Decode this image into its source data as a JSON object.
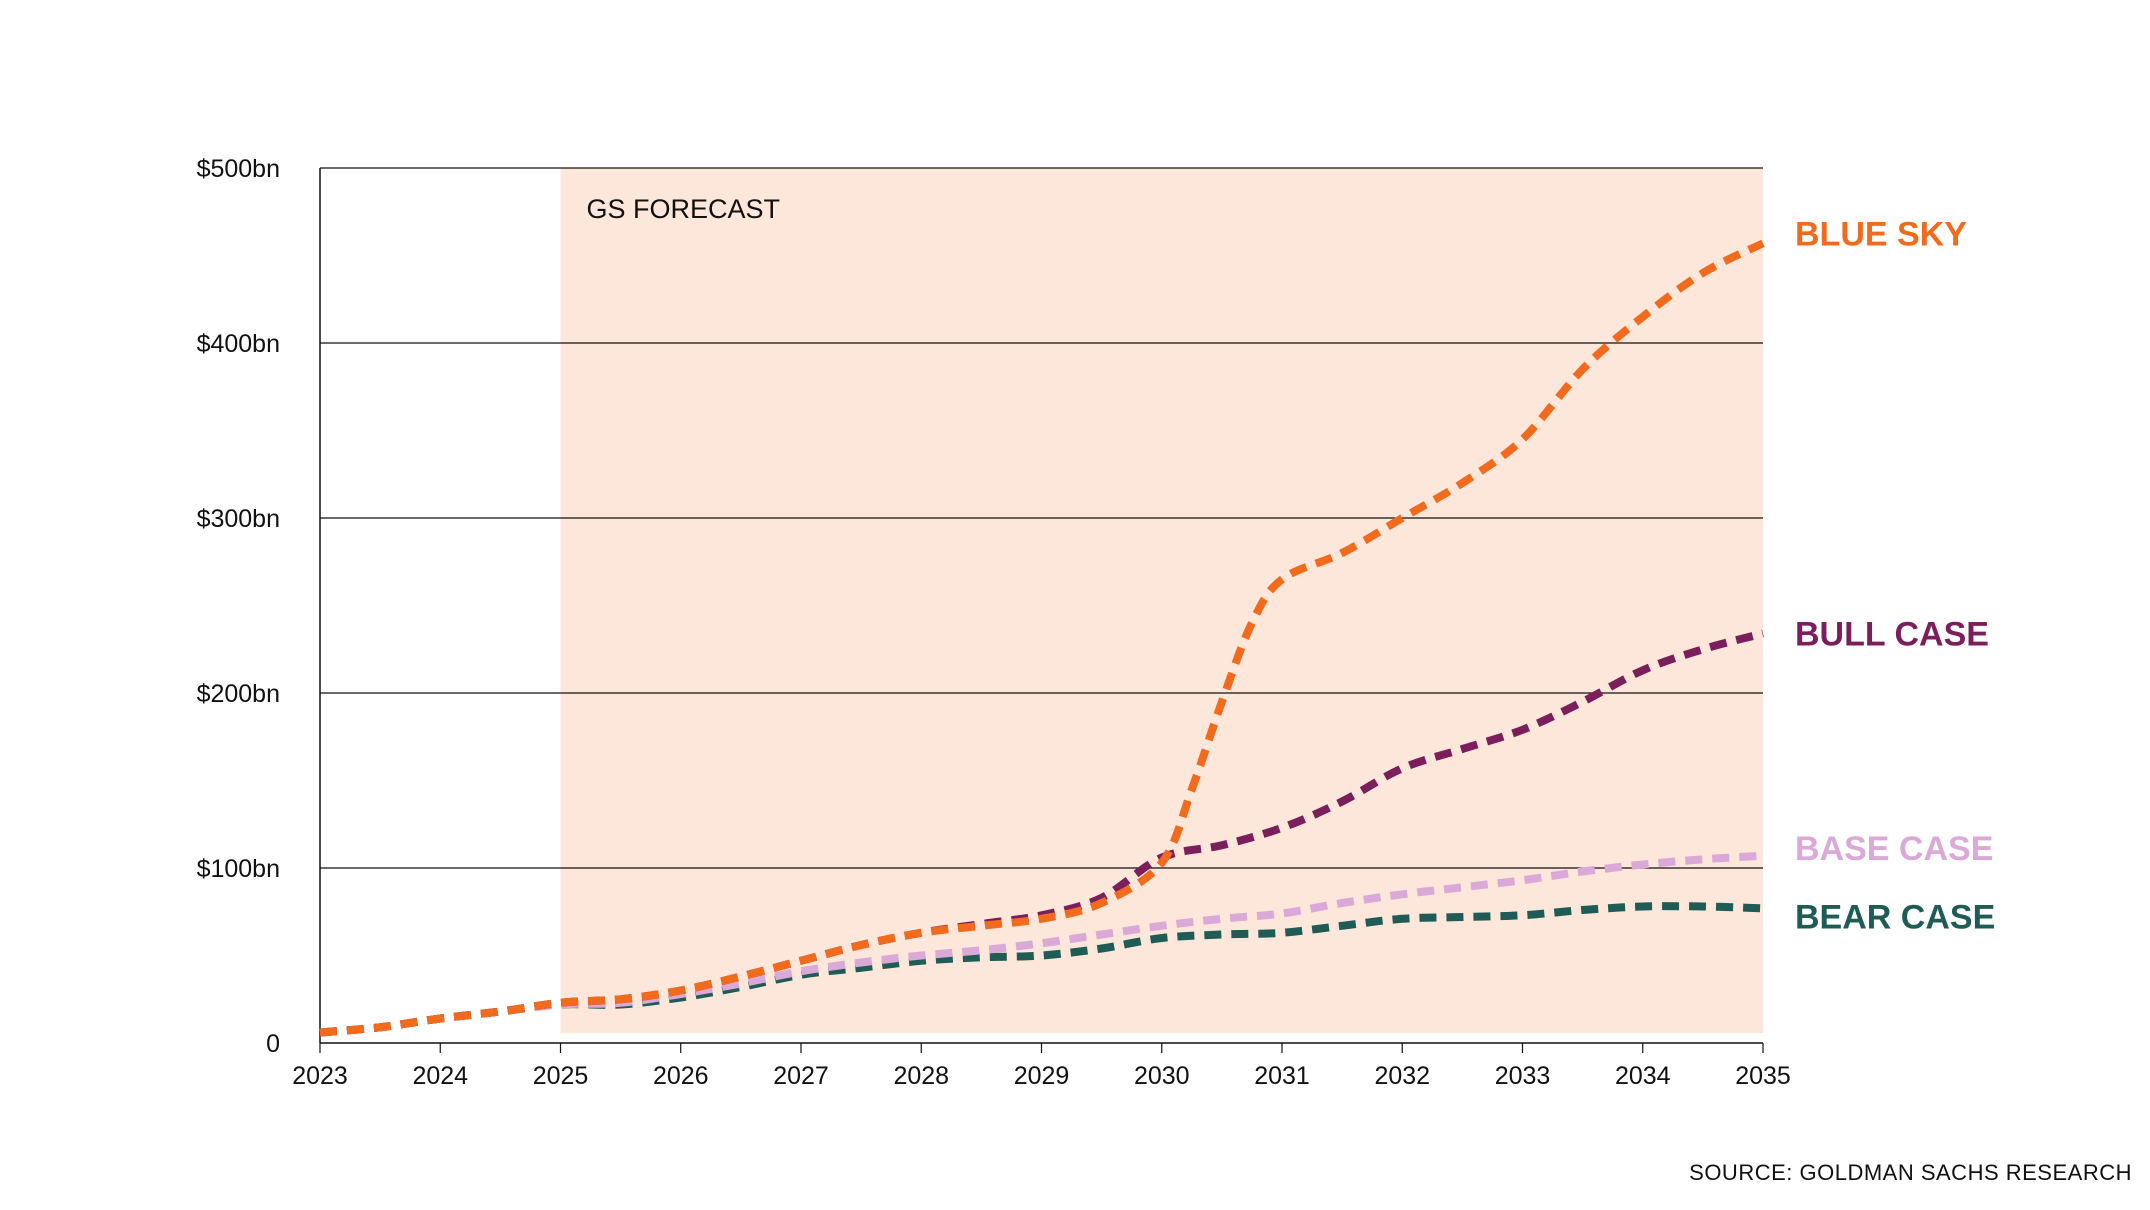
{
  "source_note": "SOURCE: GOLDMAN SACHS RESEARCH",
  "chart_data": {
    "type": "line",
    "title": "",
    "xlabel": "",
    "ylabel": "",
    "xlim": [
      2023,
      2035
    ],
    "ylim": [
      0,
      500
    ],
    "x_ticks": [
      2023,
      2024,
      2025,
      2026,
      2027,
      2028,
      2029,
      2030,
      2031,
      2032,
      2033,
      2034,
      2035
    ],
    "y_ticks": [
      {
        "value": 0,
        "label": "0"
      },
      {
        "value": 100,
        "label": "$100bn"
      },
      {
        "value": 200,
        "label": "$200bn"
      },
      {
        "value": 300,
        "label": "$300bn"
      },
      {
        "value": 400,
        "label": "$400bn"
      },
      {
        "value": 500,
        "label": "$500bn"
      }
    ],
    "grid": "horizontal",
    "forecast_band": {
      "label": "GS FORECAST",
      "start": 2025,
      "end": 2035,
      "color": "#fde6da"
    },
    "legend_position": "right (labels at line ends)",
    "series": [
      {
        "name": "BEAR CASE",
        "color": "#1f5c55",
        "x": [
          2023,
          2023.5,
          2024,
          2024.5,
          2025,
          2025.5,
          2026,
          2026.5,
          2027,
          2027.5,
          2028,
          2028.5,
          2029,
          2029.5,
          2030,
          2030.5,
          2031,
          2031.5,
          2032,
          2032.5,
          2033,
          2033.5,
          2034,
          2034.5,
          2035
        ],
        "values": [
          6,
          9,
          14,
          18,
          22,
          22,
          26,
          32,
          39,
          43,
          47,
          49,
          50,
          54,
          60,
          62,
          63,
          67,
          71,
          72,
          73,
          76,
          78,
          78,
          77
        ]
      },
      {
        "name": "BASE CASE",
        "color": "#dba9d8",
        "x": [
          2023,
          2023.5,
          2024,
          2024.5,
          2025,
          2025.5,
          2026,
          2026.5,
          2027,
          2027.5,
          2028,
          2028.5,
          2029,
          2029.5,
          2030,
          2030.5,
          2031,
          2031.5,
          2032,
          2032.5,
          2033,
          2033.5,
          2034,
          2034.5,
          2035
        ],
        "values": [
          6,
          9,
          14,
          18,
          22,
          23,
          28,
          34,
          41,
          46,
          50,
          53,
          57,
          62,
          67,
          71,
          74,
          80,
          85,
          89,
          93,
          98,
          102,
          105,
          107
        ]
      },
      {
        "name": "BULL CASE",
        "color": "#7a1f5c",
        "x": [
          2023,
          2023.5,
          2024,
          2024.5,
          2025,
          2025.5,
          2026,
          2026.5,
          2027,
          2027.5,
          2028,
          2028.5,
          2029,
          2029.5,
          2030,
          2030.5,
          2031,
          2031.5,
          2032,
          2032.5,
          2033,
          2033.5,
          2034,
          2034.5,
          2035
        ],
        "values": [
          6,
          9,
          14,
          18,
          23,
          25,
          30,
          38,
          47,
          56,
          63,
          68,
          73,
          83,
          106,
          113,
          123,
          138,
          157,
          168,
          179,
          195,
          213,
          225,
          234
        ]
      },
      {
        "name": "BLUE SKY",
        "color": "#f26b1d",
        "x": [
          2023,
          2023.5,
          2024,
          2024.5,
          2025,
          2025.5,
          2026,
          2026.5,
          2027,
          2027.5,
          2028,
          2028.5,
          2029,
          2029.5,
          2030,
          2030.25,
          2030.5,
          2030.75,
          2031,
          2031.5,
          2032,
          2032.5,
          2033,
          2033.5,
          2034,
          2034.5,
          2035
        ],
        "values": [
          6,
          9,
          14,
          18,
          23,
          25,
          30,
          38,
          47,
          56,
          63,
          67,
          71,
          80,
          103,
          145,
          195,
          240,
          265,
          280,
          300,
          320,
          345,
          385,
          415,
          440,
          457
        ]
      }
    ]
  }
}
